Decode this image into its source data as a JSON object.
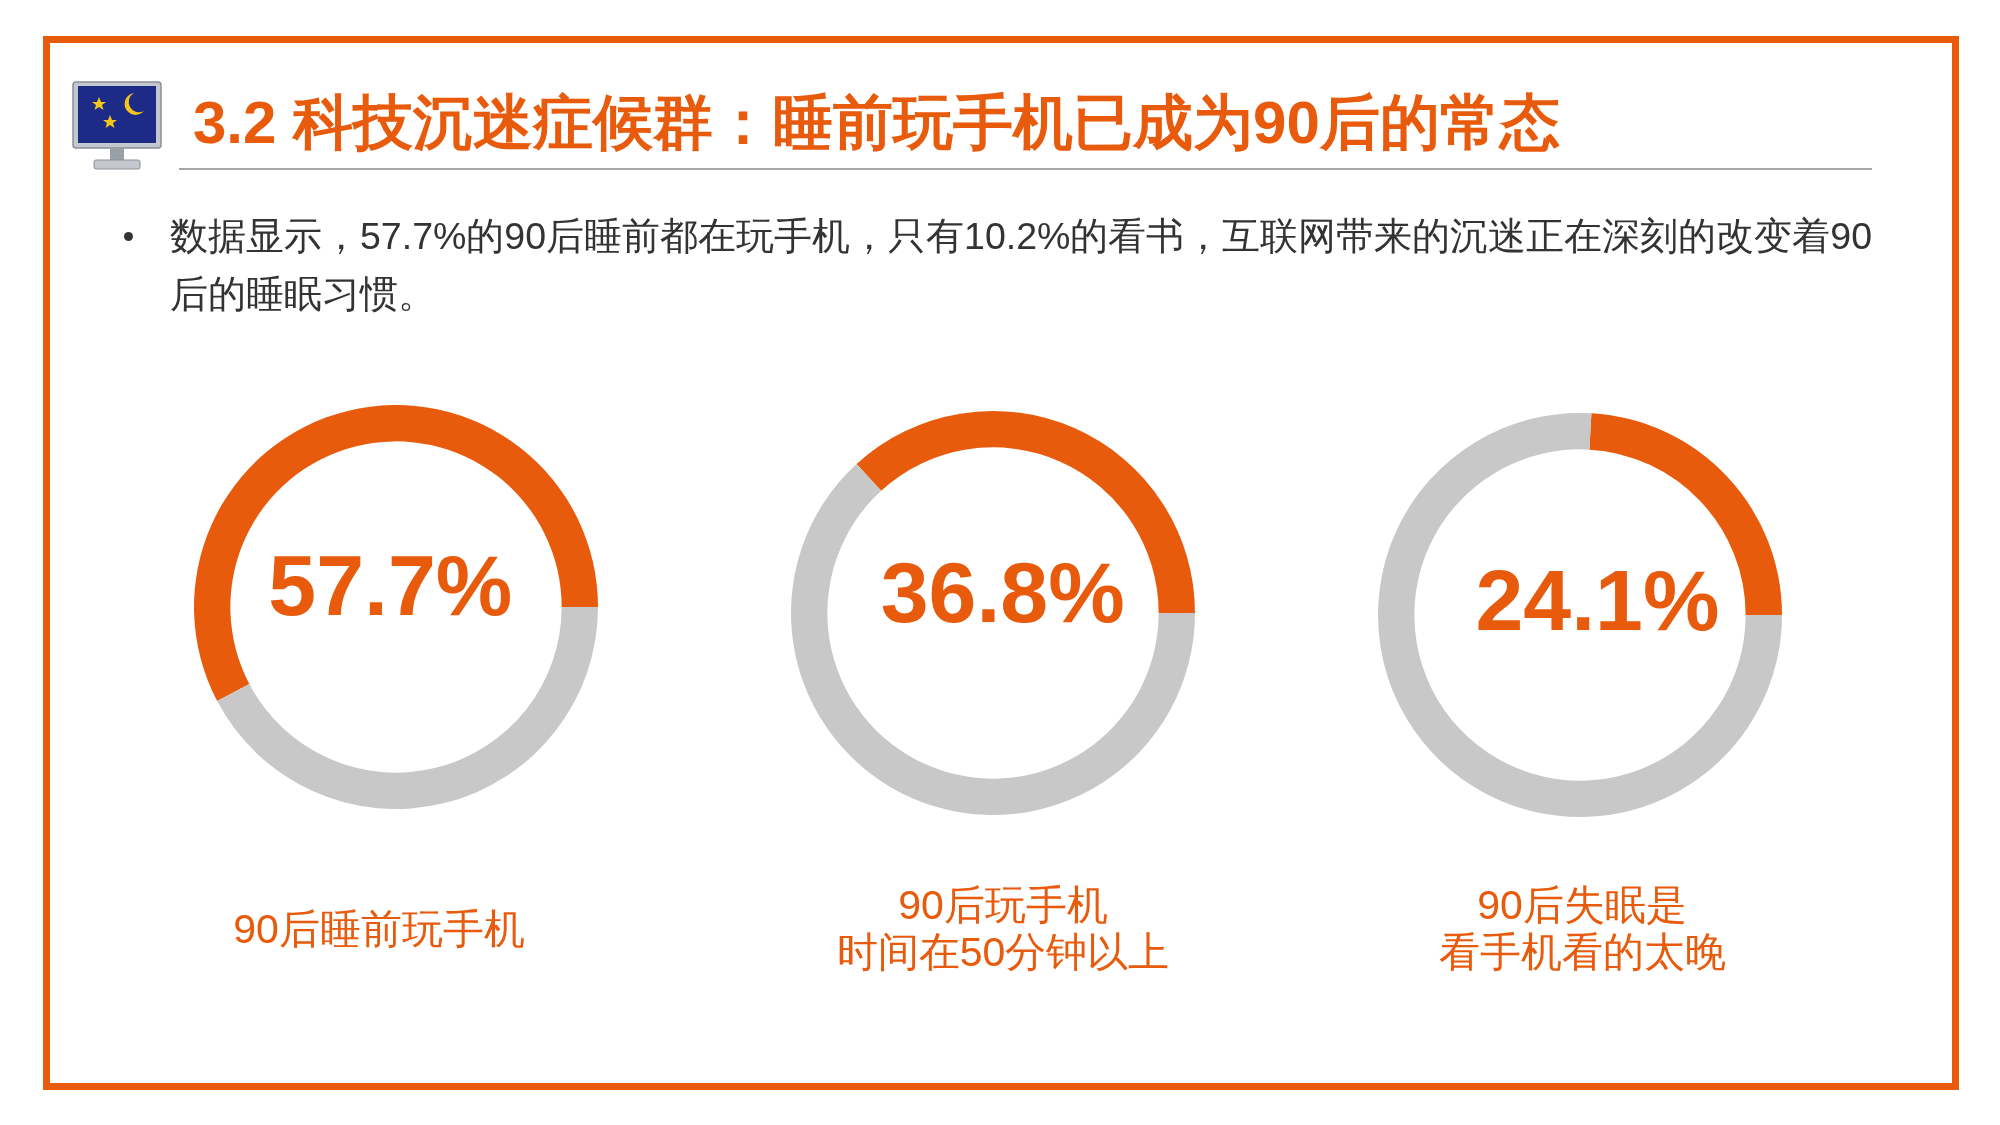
{
  "chart_data": [
    {
      "type": "other",
      "title": "3.2 科技沉迷症候群：睡前玩手机已成为90后的常态",
      "annotations": [
        "数据显示，57.7%的90后睡前都在玩手机，只有10.2%的看书，互联网带来的沉迷正在深刻的改变着90后的睡眠习惯。"
      ]
    },
    {
      "type": "donut",
      "title": "90后睡前玩手机",
      "categories": [
        null,
        null
      ],
      "values": [
        57.7,
        42.3
      ],
      "colors": [
        "#e85a0c",
        "#c8c8c8"
      ],
      "value_labels": [
        "57.7%",
        null
      ]
    },
    {
      "type": "donut",
      "title": "90后玩手机",
      "subtitle": "时间在50分钟以上",
      "categories": [
        null,
        null
      ],
      "values": [
        36.8,
        63.2
      ],
      "colors": [
        "#e85a0c",
        "#c8c8c8"
      ],
      "value_labels": [
        "36.8%",
        null
      ]
    },
    {
      "type": "donut",
      "title": "90后失眠是",
      "subtitle": "看手机看的太晚",
      "categories": [
        null,
        null
      ],
      "values": [
        24.1,
        75.9
      ],
      "colors": [
        "#e85a0c",
        "#c8c8c8"
      ],
      "value_labels": [
        "24.1%",
        null
      ]
    }
  ]
}
